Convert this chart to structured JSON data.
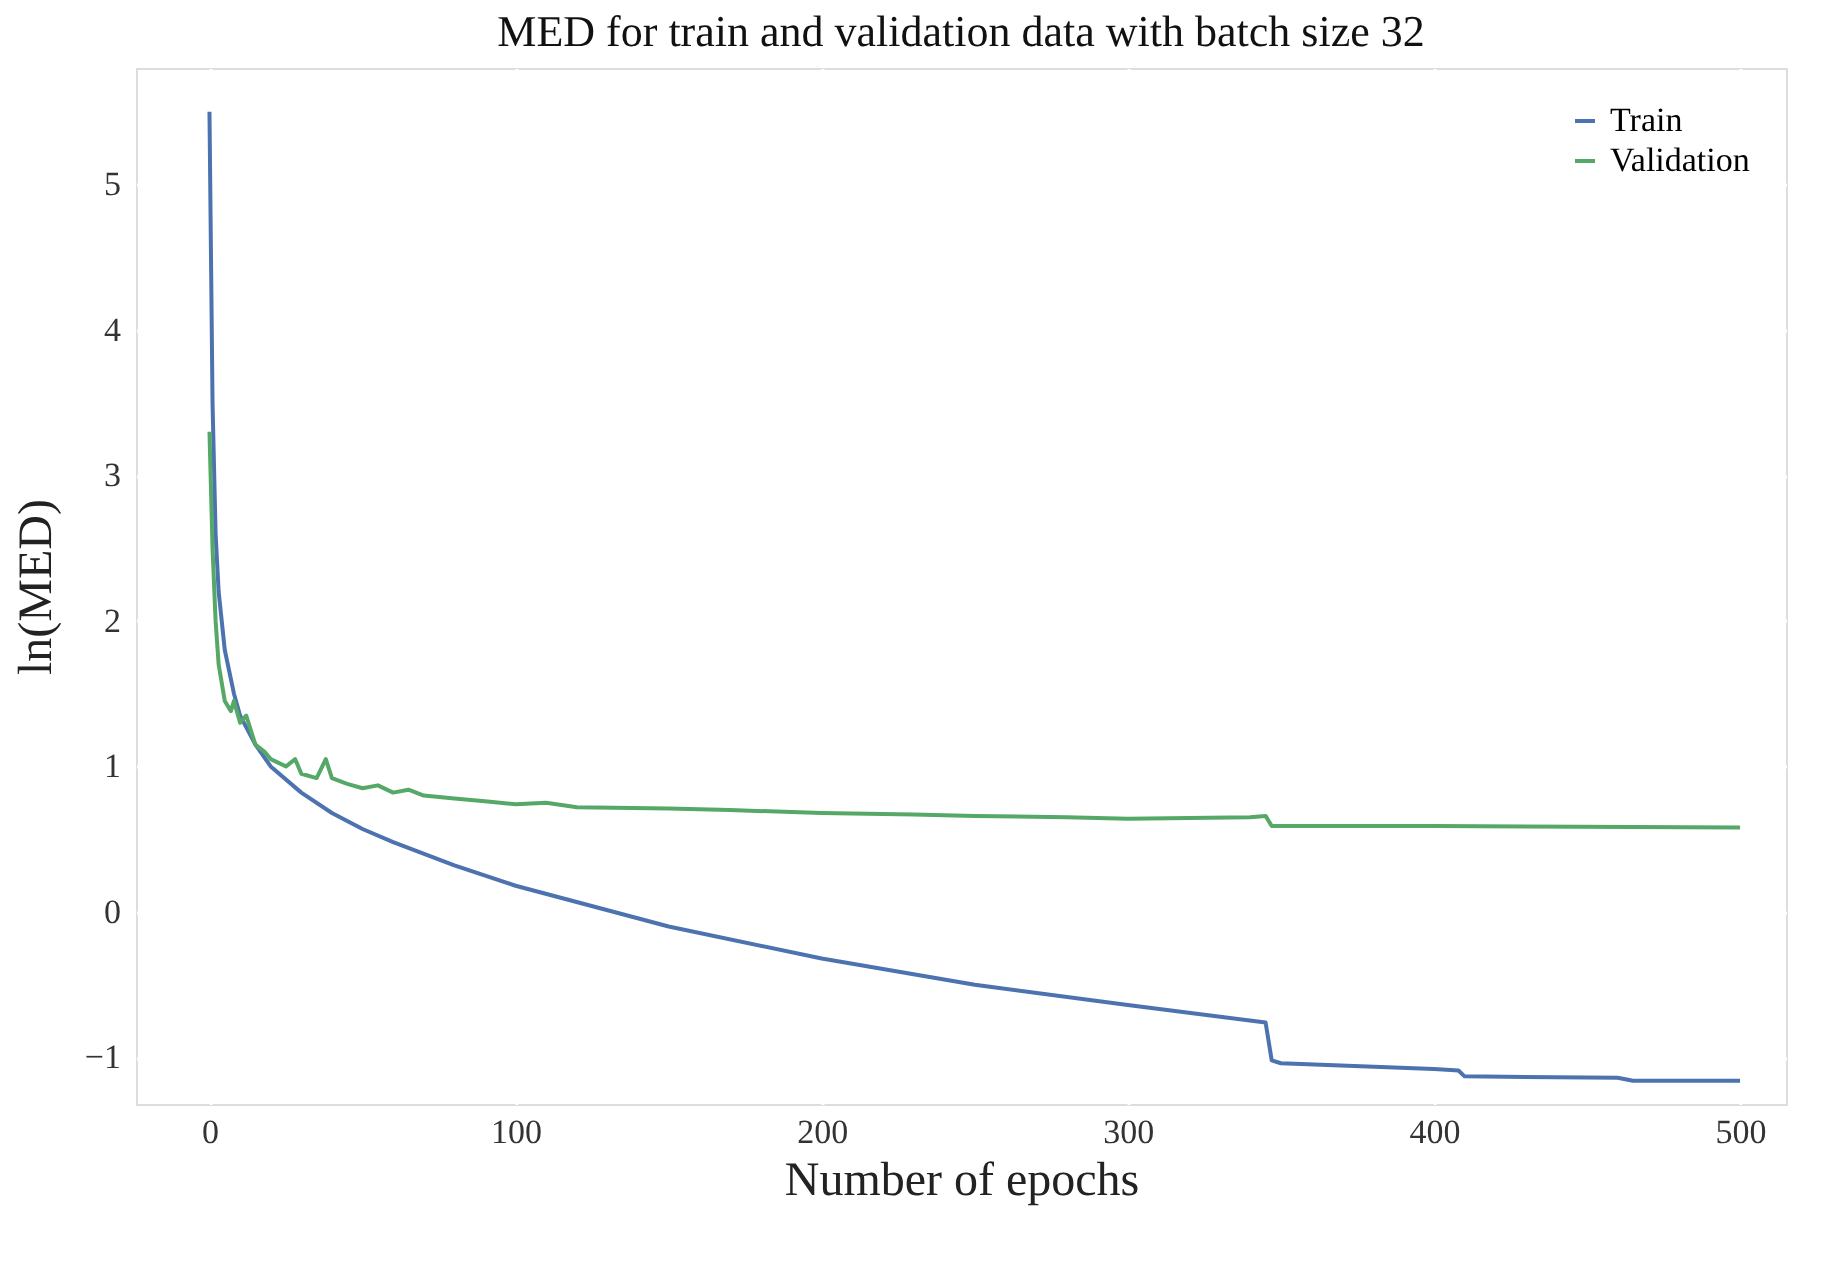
{
  "chart_data": {
    "type": "line",
    "title": "MED for train and validation data with batch size 32",
    "xlabel": "Number of epochs",
    "ylabel": "ln(MED)",
    "xlim": [
      -24,
      515
    ],
    "ylim": [
      -1.32,
      5.8
    ],
    "xticks": [
      0,
      100,
      200,
      300,
      400,
      500
    ],
    "yticks": [
      -1,
      0,
      1,
      2,
      3,
      4,
      5
    ],
    "grid": true,
    "legend": "top right",
    "line_style": "solid",
    "marker": "none",
    "series": [
      {
        "name": "Train",
        "color": "#4c72b0",
        "x": [
          0,
          1,
          2,
          3,
          5,
          8,
          10,
          15,
          20,
          30,
          40,
          50,
          60,
          80,
          100,
          150,
          200,
          250,
          300,
          345,
          347,
          350,
          400,
          408,
          410,
          460,
          465,
          500
        ],
        "values": [
          5.5,
          3.5,
          2.6,
          2.2,
          1.8,
          1.5,
          1.35,
          1.15,
          1.0,
          0.82,
          0.68,
          0.57,
          0.48,
          0.32,
          0.18,
          -0.1,
          -0.32,
          -0.5,
          -0.64,
          -0.76,
          -1.02,
          -1.04,
          -1.08,
          -1.09,
          -1.13,
          -1.14,
          -1.16,
          -1.16
        ]
      },
      {
        "name": "Validation",
        "color": "#55a868",
        "x": [
          0,
          1,
          2,
          3,
          5,
          7,
          8,
          10,
          12,
          15,
          18,
          20,
          25,
          28,
          30,
          35,
          38,
          40,
          45,
          50,
          55,
          60,
          65,
          70,
          80,
          90,
          100,
          110,
          120,
          150,
          170,
          200,
          230,
          250,
          280,
          300,
          340,
          345,
          347,
          400,
          500
        ],
        "values": [
          3.3,
          2.5,
          2.0,
          1.7,
          1.45,
          1.38,
          1.45,
          1.3,
          1.35,
          1.15,
          1.1,
          1.05,
          1.0,
          1.05,
          0.95,
          0.92,
          1.05,
          0.92,
          0.88,
          0.85,
          0.87,
          0.82,
          0.84,
          0.8,
          0.78,
          0.76,
          0.74,
          0.75,
          0.72,
          0.71,
          0.7,
          0.68,
          0.67,
          0.66,
          0.65,
          0.64,
          0.65,
          0.66,
          0.59,
          0.59,
          0.58
        ]
      }
    ]
  }
}
